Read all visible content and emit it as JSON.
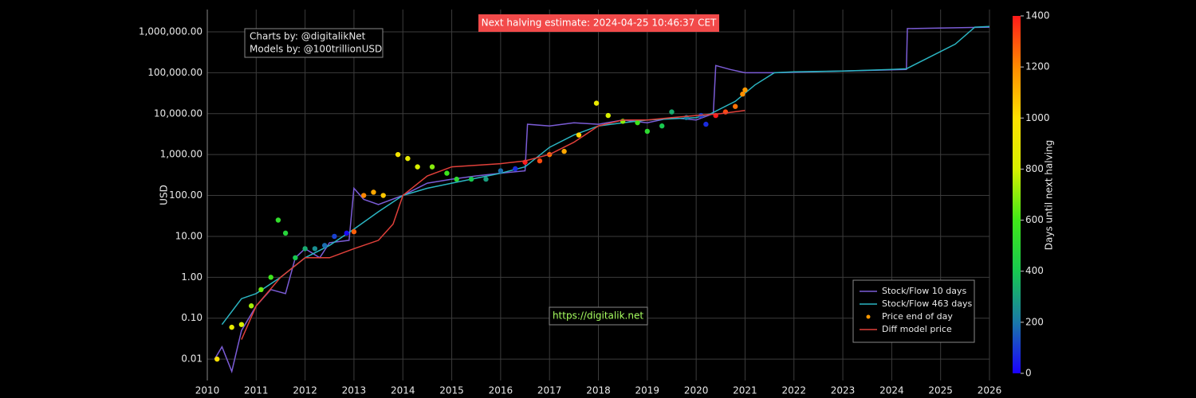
{
  "chart_data": {
    "type": "line",
    "ylabel": "USD",
    "yscale": "log",
    "grid": true,
    "legend": "lower right",
    "annotations": {
      "halving": "Next halving estimate: 2024-04-25 10:46:37 CET",
      "credits": [
        "Charts by: @digitalikNet",
        "Models by: @100trillionUSD"
      ],
      "url": "https://digitalik.net"
    },
    "xlim": [
      2010,
      2026
    ],
    "xticks": [
      2010,
      2011,
      2012,
      2013,
      2014,
      2015,
      2016,
      2017,
      2018,
      2019,
      2020,
      2021,
      2022,
      2023,
      2024,
      2025,
      2026
    ],
    "ylim": [
      0.003,
      3500000
    ],
    "yticks": [
      {
        "value": 0.01,
        "label": "0.01"
      },
      {
        "value": 0.1,
        "label": "0.10"
      },
      {
        "value": 1,
        "label": "1.00"
      },
      {
        "value": 10,
        "label": "10.00"
      },
      {
        "value": 100,
        "label": "100.00"
      },
      {
        "value": 1000,
        "label": "1,000.00"
      },
      {
        "value": 10000,
        "label": "10,000.00"
      },
      {
        "value": 100000,
        "label": "100,000.00"
      },
      {
        "value": 1000000,
        "label": "1,000,000.00"
      }
    ],
    "colorbar": {
      "title": "Days until next halving",
      "lim": [
        0,
        1400
      ],
      "ticks": [
        0,
        200,
        400,
        600,
        800,
        1000,
        1200,
        1400
      ],
      "colorscale": [
        {
          "value": 0,
          "color": "#1a00ff"
        },
        {
          "value": 200,
          "color": "#1a78a8"
        },
        {
          "value": 400,
          "color": "#18c850"
        },
        {
          "value": 600,
          "color": "#40e818"
        },
        {
          "value": 800,
          "color": "#d8f000"
        },
        {
          "value": 1000,
          "color": "#ffe000"
        },
        {
          "value": 1200,
          "color": "#ff8a00"
        },
        {
          "value": 1400,
          "color": "#ff1a1a"
        }
      ]
    },
    "series": [
      {
        "name": "Stock/Flow 10 days",
        "kind": "line",
        "color": "#7b5cd6",
        "x": [
          2010.15,
          2010.3,
          2010.5,
          2010.7,
          2011.0,
          2011.3,
          2011.6,
          2011.8,
          2012.0,
          2012.3,
          2012.5,
          2012.9,
          2013.0,
          2013.2,
          2013.5,
          2014.0,
          2014.5,
          2015.0,
          2015.5,
          2016.0,
          2016.5,
          2016.55,
          2017.0,
          2017.5,
          2018.0,
          2018.5,
          2019.0,
          2019.5,
          2020.0,
          2020.35,
          2020.4,
          2020.7,
          2021.0,
          2021.6,
          2024.3,
          2024.32,
          2026.0
        ],
        "values": [
          0.01,
          0.02,
          0.005,
          0.05,
          0.2,
          0.5,
          0.4,
          3,
          5,
          3,
          7,
          8,
          150,
          80,
          60,
          100,
          200,
          250,
          300,
          350,
          400,
          5500,
          5000,
          6000,
          5500,
          7000,
          6000,
          8000,
          7000,
          10000,
          150000,
          120000,
          100000,
          100000,
          120000,
          1200000,
          1300000
        ]
      },
      {
        "name": "Stock/Flow 463 days",
        "kind": "line",
        "color": "#2bb5c2",
        "x": [
          2010.3,
          2010.7,
          2011.0,
          2011.5,
          2012.0,
          2012.5,
          2013.0,
          2013.5,
          2014.0,
          2014.5,
          2015.0,
          2016.0,
          2016.5,
          2017.0,
          2017.5,
          2018.0,
          2018.5,
          2019.0,
          2020.0,
          2020.3,
          2020.8,
          2021.2,
          2021.6,
          2022.0,
          2023.0,
          2024.0,
          2024.3,
          2024.8,
          2025.3,
          2025.7,
          2026.0
        ],
        "values": [
          0.07,
          0.3,
          0.4,
          1,
          3,
          6,
          15,
          40,
          100,
          150,
          200,
          350,
          500,
          1500,
          3000,
          5000,
          6000,
          7000,
          8000,
          10000,
          20000,
          50000,
          100000,
          105000,
          110000,
          120000,
          125000,
          250000,
          500000,
          1300000,
          1350000
        ]
      },
      {
        "name": "Price end of day",
        "kind": "scatter",
        "color": "#ff9900",
        "x": [
          2010.2,
          2010.5,
          2010.7,
          2010.9,
          2011.1,
          2011.3,
          2011.45,
          2011.6,
          2011.8,
          2012.0,
          2012.2,
          2012.4,
          2012.6,
          2012.85,
          2013.0,
          2013.2,
          2013.4,
          2013.6,
          2013.9,
          2014.1,
          2014.3,
          2014.6,
          2014.9,
          2015.1,
          2015.4,
          2015.7,
          2016.0,
          2016.3,
          2016.5,
          2016.8,
          2017.0,
          2017.3,
          2017.6,
          2017.96,
          2018.2,
          2018.5,
          2018.8,
          2019.0,
          2019.3,
          2019.5,
          2019.8,
          2020.1,
          2020.2,
          2020.4,
          2020.6,
          2020.8,
          2020.95,
          2021.0
        ],
        "values": [
          0.01,
          0.06,
          0.07,
          0.2,
          0.5,
          1,
          25,
          12,
          3,
          5,
          5,
          6,
          10,
          12,
          13,
          100,
          120,
          100,
          1000,
          800,
          500,
          500,
          350,
          250,
          250,
          250,
          400,
          450,
          650,
          700,
          1000,
          1200,
          3000,
          18000,
          9000,
          6500,
          6000,
          3700,
          5000,
          11000,
          8000,
          9000,
          5500,
          9000,
          11000,
          15000,
          30000,
          38000
        ],
        "color_values": [
          985,
          876,
          803,
          730,
          657,
          584,
          529,
          474,
          401,
          328,
          255,
          182,
          110,
          18,
          1277,
          1204,
          1131,
          1058,
          949,
          876,
          803,
          694,
          584,
          511,
          402,
          292,
          183,
          73,
          1400,
          1314,
          1241,
          1132,
          1022,
          891,
          803,
          694,
          584,
          511,
          402,
          329,
          219,
          110,
          73,
          1400,
          1314,
          1241,
          1186,
          1168
        ]
      },
      {
        "name": "Diff model price",
        "kind": "line",
        "color": "#e0403a",
        "x": [
          2010.7,
          2011.0,
          2011.5,
          2012.0,
          2012.5,
          2013.0,
          2013.5,
          2013.8,
          2014.0,
          2014.5,
          2015.0,
          2016.0,
          2016.5,
          2017.0,
          2017.5,
          2018.0,
          2018.5,
          2019.0,
          2019.5,
          2020.0,
          2020.5,
          2021.0
        ],
        "values": [
          0.03,
          0.2,
          1,
          3,
          3,
          5,
          8,
          20,
          100,
          300,
          500,
          600,
          700,
          1000,
          2000,
          5000,
          7000,
          7000,
          8000,
          9000,
          10000,
          12000
        ]
      }
    ]
  }
}
